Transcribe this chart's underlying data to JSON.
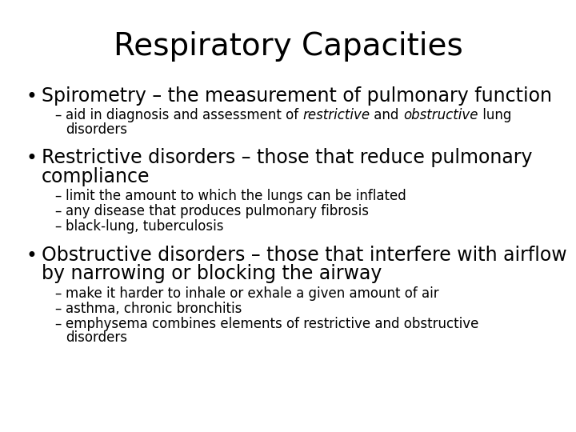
{
  "title": "Respiratory Capacities",
  "background_color": "#ffffff",
  "text_color": "#000000",
  "title_fontsize": 28,
  "bullet_fontsize": 17,
  "sub_fontsize": 12,
  "content": [
    {
      "type": "bullet",
      "text": "Spirometry – the measurement of pulmonary function",
      "subs": [
        {
          "parts": [
            {
              "text": "aid in diagnosis and assessment of ",
              "style": "normal"
            },
            {
              "text": "restrictive",
              "style": "italic"
            },
            {
              "text": " and ",
              "style": "normal"
            },
            {
              "text": "obstructive",
              "style": "italic"
            },
            {
              "text": " lung\ndisorders",
              "style": "normal"
            }
          ]
        }
      ]
    },
    {
      "type": "bullet",
      "text": "Restrictive disorders – those that reduce pulmonary\ncompliance",
      "subs": [
        {
          "parts": [
            {
              "text": "limit the amount to which the lungs can be inflated",
              "style": "normal"
            }
          ]
        },
        {
          "parts": [
            {
              "text": "any disease that produces pulmonary fibrosis",
              "style": "normal"
            }
          ]
        },
        {
          "parts": [
            {
              "text": "black-lung, tuberculosis",
              "style": "normal"
            }
          ]
        }
      ]
    },
    {
      "type": "bullet",
      "text": "Obstructive disorders – those that interfere with airflow\nby narrowing or blocking the airway",
      "subs": [
        {
          "parts": [
            {
              "text": "make it harder to inhale or exhale a given amount of air",
              "style": "normal"
            }
          ]
        },
        {
          "parts": [
            {
              "text": "asthma, chronic bronchitis",
              "style": "normal"
            }
          ]
        },
        {
          "parts": [
            {
              "text": "emphysema combines elements of restrictive and obstructive\ndisorders",
              "style": "normal"
            }
          ]
        }
      ]
    }
  ]
}
